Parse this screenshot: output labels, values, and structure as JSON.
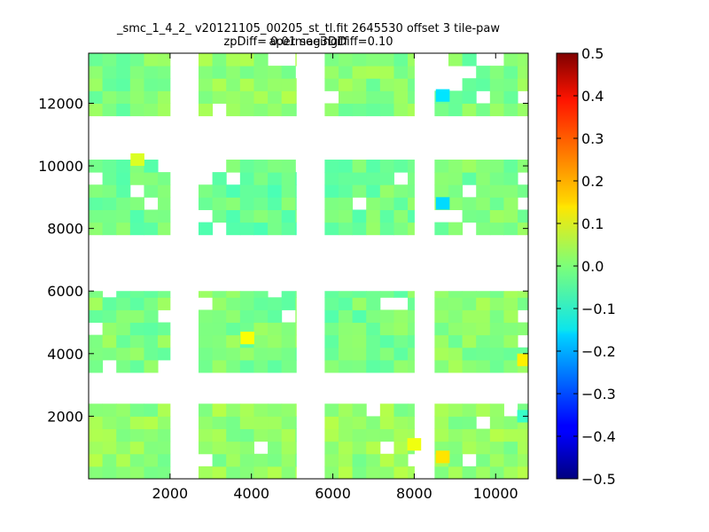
{
  "chart_data": {
    "type": "heatmap",
    "title": "_smc_1_4_2_ v20121105_00205_st_tl.fit 2645530 offset 3 tile-paw apermag3Diff",
    "subtitle": "zpDiff= 0.01 seeingDiff=0.10",
    "xlabel": "",
    "ylabel": "",
    "xlim": [
      0,
      10800
    ],
    "ylim": [
      0,
      13600
    ],
    "xticks": [
      2000,
      4000,
      6000,
      8000,
      10000
    ],
    "yticks": [
      2000,
      4000,
      6000,
      8000,
      10000,
      12000
    ],
    "colorbar": {
      "colormap": "jet",
      "vmin": -0.5,
      "vmax": 0.5,
      "ticks": [
        0.5,
        0.4,
        0.3,
        0.2,
        0.1,
        0.0,
        -0.1,
        -0.2,
        -0.3,
        -0.4,
        -0.5
      ],
      "tick_labels": [
        "0.5",
        "0.4",
        "0.3",
        "0.2",
        "0.1",
        "0.0",
        "−0.1",
        "−0.2",
        "−0.3",
        "−0.4",
        "−0.5"
      ]
    },
    "cell_size": [
      340,
      400
    ],
    "blocks": [
      {
        "x_range": [
          0,
          2000
        ],
        "y_range": [
          0,
          2400
        ],
        "value": 0.02
      },
      {
        "x_range": [
          2700,
          5100
        ],
        "y_range": [
          0,
          2400
        ],
        "value": 0.02
      },
      {
        "x_range": [
          5800,
          8000
        ],
        "y_range": [
          0,
          2400
        ],
        "value": 0.02
      },
      {
        "x_range": [
          8500,
          10800
        ],
        "y_range": [
          0,
          2400
        ],
        "value": 0.02
      },
      {
        "x_range": [
          0,
          2000
        ],
        "y_range": [
          3400,
          6000
        ],
        "value": 0.0
      },
      {
        "x_range": [
          2700,
          5100
        ],
        "y_range": [
          3400,
          6000
        ],
        "value": 0.0
      },
      {
        "x_range": [
          5800,
          8000
        ],
        "y_range": [
          3400,
          6000
        ],
        "value": -0.01
      },
      {
        "x_range": [
          8500,
          10800
        ],
        "y_range": [
          3400,
          6000
        ],
        "value": 0.01
      },
      {
        "x_range": [
          0,
          2000
        ],
        "y_range": [
          7800,
          10200
        ],
        "value": -0.01
      },
      {
        "x_range": [
          2700,
          5100
        ],
        "y_range": [
          7800,
          10200
        ],
        "value": -0.02
      },
      {
        "x_range": [
          5800,
          8000
        ],
        "y_range": [
          7800,
          10200
        ],
        "value": -0.01
      },
      {
        "x_range": [
          8500,
          10800
        ],
        "y_range": [
          7800,
          10200
        ],
        "value": 0.0
      },
      {
        "x_range": [
          0,
          2000
        ],
        "y_range": [
          11600,
          13600
        ],
        "value": 0.0
      },
      {
        "x_range": [
          2700,
          5100
        ],
        "y_range": [
          11600,
          13600
        ],
        "value": 0.02
      },
      {
        "x_range": [
          5800,
          8000
        ],
        "y_range": [
          11600,
          13600
        ],
        "value": 0.01
      },
      {
        "x_range": [
          8500,
          10800
        ],
        "y_range": [
          11600,
          13600
        ],
        "value": 0.0
      }
    ],
    "highlight_cells": [
      {
        "x": 8700,
        "y": 12250,
        "value": -0.15
      },
      {
        "x": 8700,
        "y": 8800,
        "value": -0.16
      },
      {
        "x": 3900,
        "y": 4500,
        "value": 0.12
      },
      {
        "x": 10700,
        "y": 3800,
        "value": 0.14
      },
      {
        "x": 8700,
        "y": 700,
        "value": 0.15
      },
      {
        "x": 8000,
        "y": 1100,
        "value": 0.11
      },
      {
        "x": 1200,
        "y": 10200,
        "value": 0.09
      },
      {
        "x": 10700,
        "y": 2000,
        "value": -0.07
      }
    ],
    "grid": false
  }
}
